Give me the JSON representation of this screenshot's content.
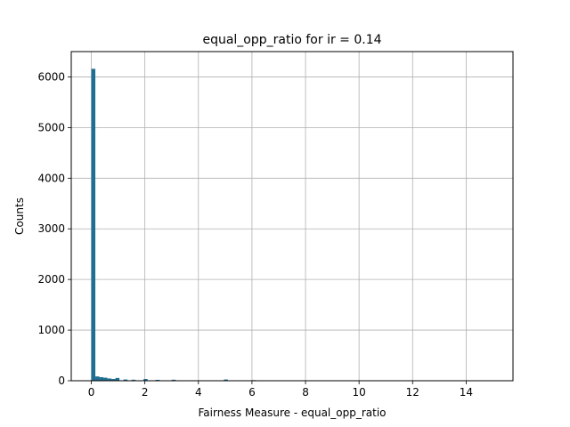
{
  "chart_data": {
    "type": "bar",
    "title": "equal_opp_ratio for ir = 0.14",
    "xlabel": "Fairness Measure - equal_opp_ratio",
    "ylabel": "Counts",
    "xlim": [
      -0.75,
      15.75
    ],
    "ylim": [
      0,
      6500
    ],
    "xticks": [
      0,
      2,
      4,
      6,
      8,
      10,
      12,
      14
    ],
    "yticks": [
      0,
      1000,
      2000,
      3000,
      4000,
      5000,
      6000
    ],
    "grid": true,
    "bar_color": "#1f6e94",
    "bin_width": 0.15,
    "bins": [
      {
        "x": 0.0,
        "count": 6160
      },
      {
        "x": 0.15,
        "count": 85
      },
      {
        "x": 0.3,
        "count": 70
      },
      {
        "x": 0.45,
        "count": 60
      },
      {
        "x": 0.6,
        "count": 45
      },
      {
        "x": 0.75,
        "count": 35
      },
      {
        "x": 0.9,
        "count": 55
      },
      {
        "x": 1.2,
        "count": 25
      },
      {
        "x": 1.5,
        "count": 20
      },
      {
        "x": 1.95,
        "count": 35
      },
      {
        "x": 2.4,
        "count": 18
      },
      {
        "x": 3.0,
        "count": 20
      },
      {
        "x": 4.95,
        "count": 25
      },
      {
        "x": 6.0,
        "count": 12
      }
    ]
  }
}
